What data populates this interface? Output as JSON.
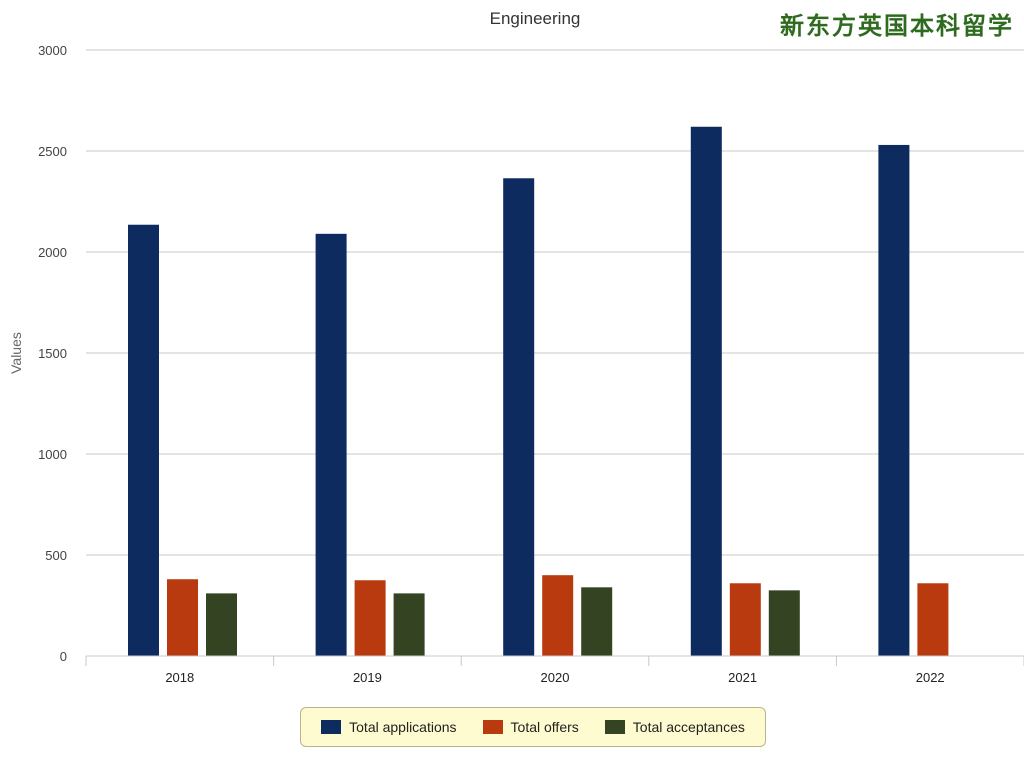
{
  "watermark": "新东方英国本科留学",
  "chart_data": {
    "type": "bar",
    "title": "Engineering",
    "xlabel": "",
    "ylabel": "Values",
    "ylim": [
      0,
      3000
    ],
    "yticks": [
      0,
      500,
      1000,
      1500,
      2000,
      2500,
      3000
    ],
    "grid": true,
    "legend_position": "bottom",
    "categories": [
      "2018",
      "2019",
      "2020",
      "2021",
      "2022"
    ],
    "series": [
      {
        "name": "Total applications",
        "color": "#0d2b5e",
        "values": [
          2135,
          2090,
          2365,
          2620,
          2530
        ]
      },
      {
        "name": "Total offers",
        "color": "#b83a0e",
        "values": [
          380,
          375,
          400,
          360,
          360
        ]
      },
      {
        "name": "Total acceptances",
        "color": "#344322",
        "values": [
          310,
          310,
          340,
          325,
          null
        ]
      }
    ]
  }
}
